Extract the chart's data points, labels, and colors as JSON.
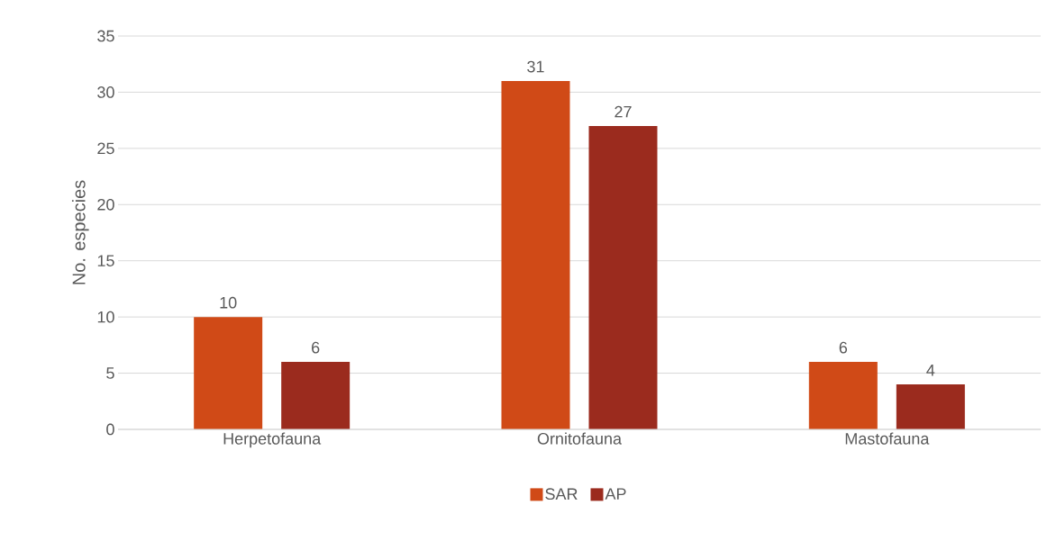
{
  "chart_data": {
    "type": "bar",
    "ylabel": "No. especies",
    "categories": [
      "Herpetofauna",
      "Ornitofauna",
      "Mastofauna"
    ],
    "series": [
      {
        "name": "SAR",
        "color": "#d04a17",
        "values": [
          10,
          31,
          6
        ]
      },
      {
        "name": "AP",
        "color": "#9b2b1e",
        "values": [
          6,
          27,
          4
        ]
      }
    ],
    "ylim": [
      0,
      35
    ],
    "yticks": [
      0,
      5,
      10,
      15,
      20,
      25,
      30,
      35
    ],
    "grid": "y",
    "legend": "bottom",
    "data_labels": true
  }
}
